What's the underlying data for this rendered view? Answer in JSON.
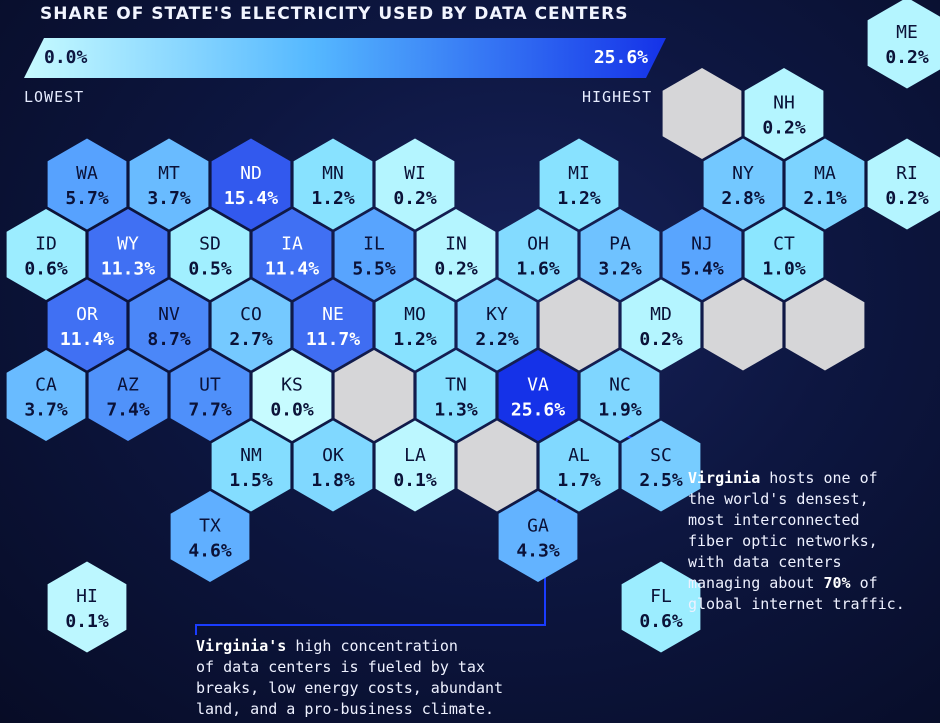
{
  "title": "SHARE OF STATE'S ELECTRICITY USED BY DATA CENTERS",
  "legend": {
    "min_label": "0.0%",
    "max_label": "25.6%",
    "low_caption": "LOWEST",
    "high_caption": "HIGHEST",
    "color_low": "#c7fbff",
    "color_high": "#1532e8",
    "color_empty": "#d6d6d8"
  },
  "annotations": {
    "virginia": {
      "bold": "Virginia",
      "l1": " hosts one of",
      "l2": "the world's densest,",
      "l3": "most interconnected",
      "l4": "fiber optic networks,",
      "l5": "with data centers",
      "l6a": "managing about ",
      "l6b": "70%",
      "l6c": " of",
      "l7": "global internet traffic."
    },
    "concentration": {
      "bold": "Virginia's",
      "l1": " high concentration",
      "l2": "of data centers is fueled by tax",
      "l3": "breaks, low energy costs, abundant",
      "l4": "land, and a pro-business climate."
    }
  },
  "map_data": {
    "type": "hex-tile choropleth",
    "unit": "%",
    "states": [
      {
        "abbr": "ME",
        "value": 0.2,
        "label": "0.2%",
        "row": 0,
        "col": 10
      },
      {
        "abbr": "NH",
        "value": 0.2,
        "label": "0.2%",
        "row": 1,
        "col": 9
      },
      {
        "abbr": "WA",
        "value": 5.7,
        "label": "5.7%",
        "row": 2,
        "col": 0
      },
      {
        "abbr": "MT",
        "value": 3.7,
        "label": "3.7%",
        "row": 2,
        "col": 1
      },
      {
        "abbr": "ND",
        "value": 15.4,
        "label": "15.4%",
        "row": 2,
        "col": 2
      },
      {
        "abbr": "MN",
        "value": 1.2,
        "label": "1.2%",
        "row": 2,
        "col": 3
      },
      {
        "abbr": "WI",
        "value": 0.2,
        "label": "0.2%",
        "row": 2,
        "col": 4
      },
      {
        "abbr": "MI",
        "value": 1.2,
        "label": "1.2%",
        "row": 2,
        "col": 6
      },
      {
        "abbr": "NY",
        "value": 2.8,
        "label": "2.8%",
        "row": 2,
        "col": 8
      },
      {
        "abbr": "MA",
        "value": 2.1,
        "label": "2.1%",
        "row": 2,
        "col": 9
      },
      {
        "abbr": "RI",
        "value": 0.2,
        "label": "0.2%",
        "row": 2,
        "col": 10
      },
      {
        "abbr": "ID",
        "value": 0.6,
        "label": "0.6%",
        "row": 3,
        "col": 0
      },
      {
        "abbr": "WY",
        "value": 11.3,
        "label": "11.3%",
        "row": 3,
        "col": 1
      },
      {
        "abbr": "SD",
        "value": 0.5,
        "label": "0.5%",
        "row": 3,
        "col": 2
      },
      {
        "abbr": "IA",
        "value": 11.4,
        "label": "11.4%",
        "row": 3,
        "col": 3
      },
      {
        "abbr": "IL",
        "value": 5.5,
        "label": "5.5%",
        "row": 3,
        "col": 4
      },
      {
        "abbr": "IN",
        "value": 0.2,
        "label": "0.2%",
        "row": 3,
        "col": 5
      },
      {
        "abbr": "OH",
        "value": 1.6,
        "label": "1.6%",
        "row": 3,
        "col": 6
      },
      {
        "abbr": "PA",
        "value": 3.2,
        "label": "3.2%",
        "row": 3,
        "col": 7
      },
      {
        "abbr": "NJ",
        "value": 5.4,
        "label": "5.4%",
        "row": 3,
        "col": 8
      },
      {
        "abbr": "CT",
        "value": 1.0,
        "label": "1.0%",
        "row": 3,
        "col": 9
      },
      {
        "abbr": "OR",
        "value": 11.4,
        "label": "11.4%",
        "row": 4,
        "col": 0
      },
      {
        "abbr": "NV",
        "value": 8.7,
        "label": "8.7%",
        "row": 4,
        "col": 1
      },
      {
        "abbr": "CO",
        "value": 2.7,
        "label": "2.7%",
        "row": 4,
        "col": 2
      },
      {
        "abbr": "NE",
        "value": 11.7,
        "label": "11.7%",
        "row": 4,
        "col": 3
      },
      {
        "abbr": "MO",
        "value": 1.2,
        "label": "1.2%",
        "row": 4,
        "col": 4
      },
      {
        "abbr": "KY",
        "value": 2.2,
        "label": "2.2%",
        "row": 4,
        "col": 5
      },
      {
        "abbr": "MD",
        "value": 0.2,
        "label": "0.2%",
        "row": 4,
        "col": 7
      },
      {
        "abbr": "CA",
        "value": 3.7,
        "label": "3.7%",
        "row": 5,
        "col": 0
      },
      {
        "abbr": "AZ",
        "value": 7.4,
        "label": "7.4%",
        "row": 5,
        "col": 1
      },
      {
        "abbr": "UT",
        "value": 7.7,
        "label": "7.7%",
        "row": 5,
        "col": 2
      },
      {
        "abbr": "KS",
        "value": 0.0,
        "label": "0.0%",
        "row": 5,
        "col": 3
      },
      {
        "abbr": "TN",
        "value": 1.3,
        "label": "1.3%",
        "row": 5,
        "col": 5
      },
      {
        "abbr": "VA",
        "value": 25.6,
        "label": "25.6%",
        "row": 5,
        "col": 6
      },
      {
        "abbr": "NC",
        "value": 1.9,
        "label": "1.9%",
        "row": 5,
        "col": 7
      },
      {
        "abbr": "NM",
        "value": 1.5,
        "label": "1.5%",
        "row": 6,
        "col": 2
      },
      {
        "abbr": "OK",
        "value": 1.8,
        "label": "1.8%",
        "row": 6,
        "col": 3
      },
      {
        "abbr": "LA",
        "value": 0.1,
        "label": "0.1%",
        "row": 6,
        "col": 4
      },
      {
        "abbr": "AL",
        "value": 1.7,
        "label": "1.7%",
        "row": 6,
        "col": 6
      },
      {
        "abbr": "SC",
        "value": 2.5,
        "label": "2.5%",
        "row": 6,
        "col": 7
      },
      {
        "abbr": "TX",
        "value": 4.6,
        "label": "4.6%",
        "row": 7,
        "col": 2
      },
      {
        "abbr": "GA",
        "value": 4.3,
        "label": "4.3%",
        "row": 7,
        "col": 6
      },
      {
        "abbr": "HI",
        "value": 0.1,
        "label": "0.1%",
        "row": 8,
        "col": 0
      },
      {
        "abbr": "FL",
        "value": 0.6,
        "label": "0.6%",
        "row": 8,
        "col": 7
      }
    ],
    "empty_tiles": [
      {
        "row": 1,
        "col": 8
      },
      {
        "row": 4,
        "col": 6
      },
      {
        "row": 4,
        "col": 8
      },
      {
        "row": 4,
        "col": 9
      },
      {
        "row": 5,
        "col": 4
      },
      {
        "row": 6,
        "col": 5
      }
    ]
  }
}
